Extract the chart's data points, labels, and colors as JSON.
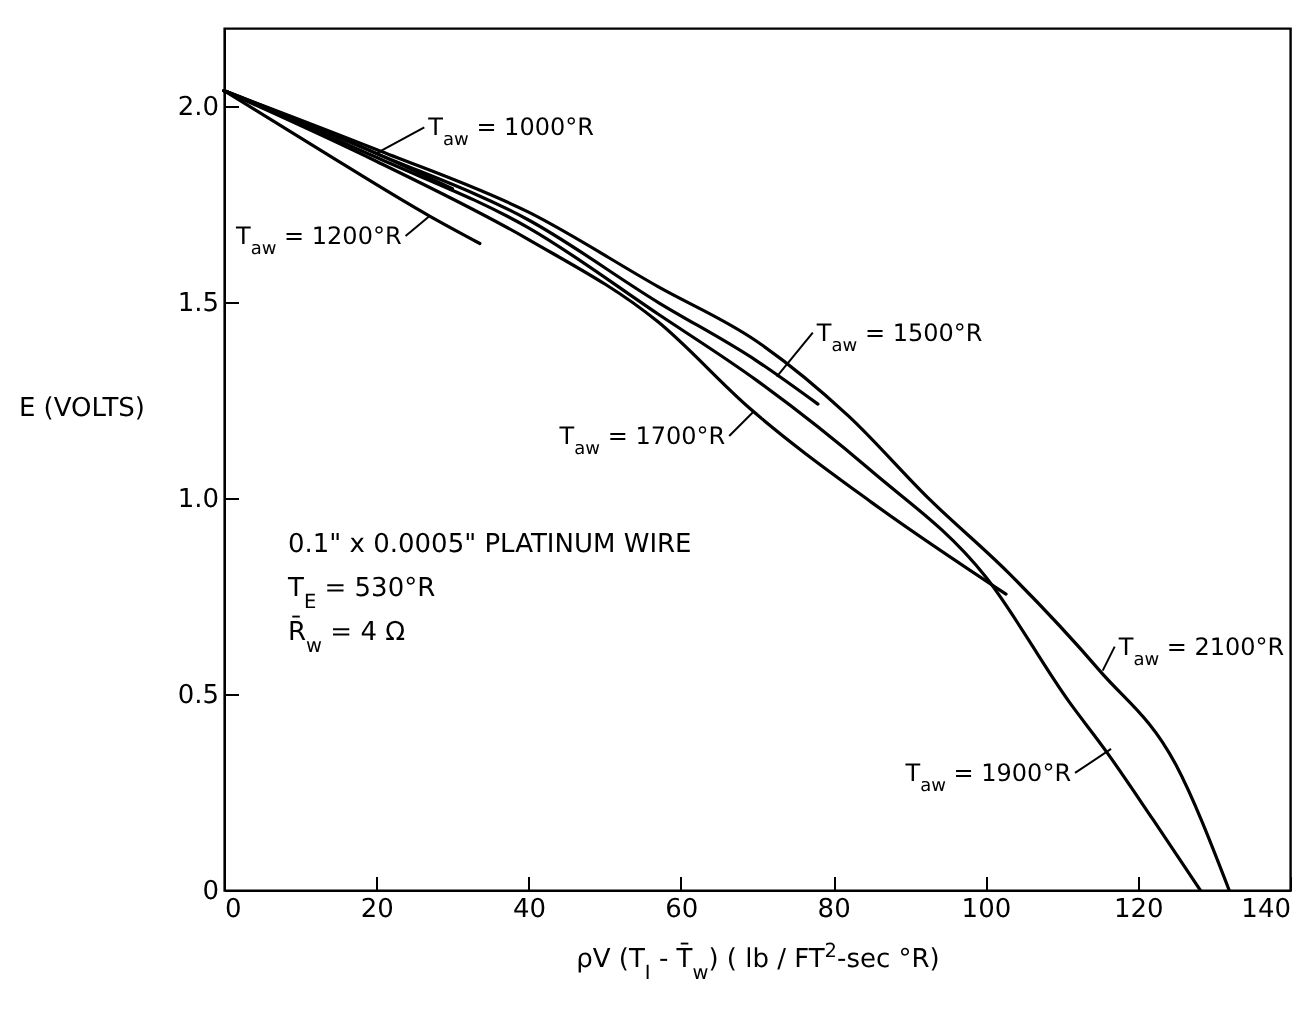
{
  "chart_data": {
    "type": "line",
    "xlabel": "ρV (T$_{I}$ - T̄$_{w}$)  ( lb / FT$^{2}$-sec  °R)",
    "ylabel": "E (VOLTS)",
    "xlim": [
      0,
      140
    ],
    "xticks": [
      0,
      20,
      40,
      60,
      80,
      100,
      120,
      140
    ],
    "ylim": [
      0,
      2.2
    ],
    "yticks": [
      0,
      0.5,
      {
        "value": 1,
        "label": "1.0"
      },
      1.5,
      {
        "value": 2,
        "label": "2.0"
      }
    ],
    "grid": false,
    "marker": "none",
    "line_style": "solid",
    "series": [
      {
        "color": "#000000",
        "x": [
          0,
          20,
          30
        ],
        "values": [
          2.04,
          1.88,
          1.79
        ]
      },
      {
        "color": "#000000",
        "x": [
          0,
          15,
          27,
          33.6
        ],
        "values": [
          2.04,
          1.86,
          1.72,
          1.65
        ]
      },
      {
        "color": "#000000",
        "x": [
          0,
          20,
          40,
          57,
          70,
          78
        ],
        "values": [
          2.04,
          1.88,
          1.71,
          1.5,
          1.35,
          1.24
        ]
      },
      {
        "color": "#000000",
        "x": [
          0,
          20,
          40,
          57,
          69,
          85,
          102.7
        ],
        "values": [
          2.04,
          1.86,
          1.66,
          1.45,
          1.23,
          0.99,
          0.755
        ]
      },
      {
        "color": "#000000",
        "x": [
          0,
          20,
          40,
          57,
          70,
          85,
          100,
          111,
          116,
          122,
          128.2
        ],
        "values": [
          2.04,
          1.87,
          1.69,
          1.47,
          1.3,
          1.07,
          0.8,
          0.48,
          0.35,
          0.18,
          0
        ]
      },
      {
        "color": "#000000",
        "x": [
          0,
          20,
          40,
          57,
          70,
          82,
          92.5,
          103,
          115,
          125,
          132
        ],
        "values": [
          2.04,
          1.89,
          1.73,
          1.54,
          1.4,
          1.21,
          1.0,
          0.81,
          0.56,
          0.32,
          0
        ]
      }
    ],
    "annotations": [
      {
        "text": "T$_{aw}$ = 1000°R",
        "x": 20,
        "y": 1.88
      },
      {
        "text": "T$_{aw}$ = 1200°R",
        "x": 27,
        "y": 1.72
      },
      {
        "text": "T$_{aw}$ = 1500°R",
        "x": 72.6,
        "y": 1.31
      },
      {
        "text": "T$_{aw}$ = 1700°R",
        "x": 69.5,
        "y": 1.22
      },
      {
        "text": "T$_{aw}$ = 1900°R",
        "x": 116.5,
        "y": 0.36
      },
      {
        "text": "T$_{aw}$ = 2100°R",
        "x": 115.4,
        "y": 0.56
      },
      "0.1\" x 0.0005\" PLATINUM  WIRE",
      "T$_{E}$ = 530°R",
      "R̄$_{w}$ = 4 Ω"
    ]
  }
}
